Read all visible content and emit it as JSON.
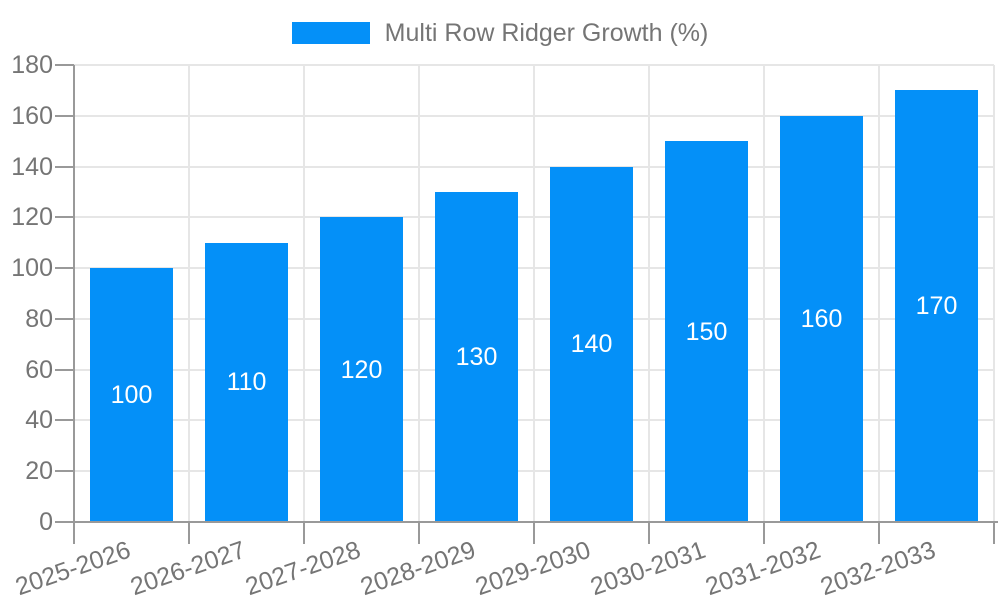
{
  "legend": {
    "series_label": "Multi Row Ridger Growth (%)"
  },
  "chart_data": {
    "type": "bar",
    "title": "Multi Row Ridger Growth (%)",
    "categories": [
      "2025-2026",
      "2026-2027",
      "2027-2028",
      "2028-2029",
      "2029-2030",
      "2030-2031",
      "2031-2032",
      "2032-2033"
    ],
    "series": [
      {
        "name": "Multi Row Ridger Growth (%)",
        "values": [
          100,
          110,
          120,
          130,
          140,
          150,
          160,
          170
        ]
      }
    ],
    "values": [
      100,
      110,
      120,
      130,
      140,
      150,
      160,
      170
    ],
    "bar_value_labels": [
      "100",
      "110",
      "120",
      "130",
      "140",
      "150",
      "160",
      "170"
    ],
    "xlabel": "",
    "ylabel": "",
    "ylim": [
      0,
      180
    ],
    "yticks": [
      0,
      20,
      40,
      60,
      80,
      100,
      120,
      140,
      160,
      180
    ],
    "grid": true,
    "legend_position": "top-center",
    "colors": {
      "bar": "#0490f8",
      "bar_label": "#ffffff",
      "axis": "#999999",
      "grid": "#e6e6e6",
      "tick_text": "#757575"
    }
  }
}
